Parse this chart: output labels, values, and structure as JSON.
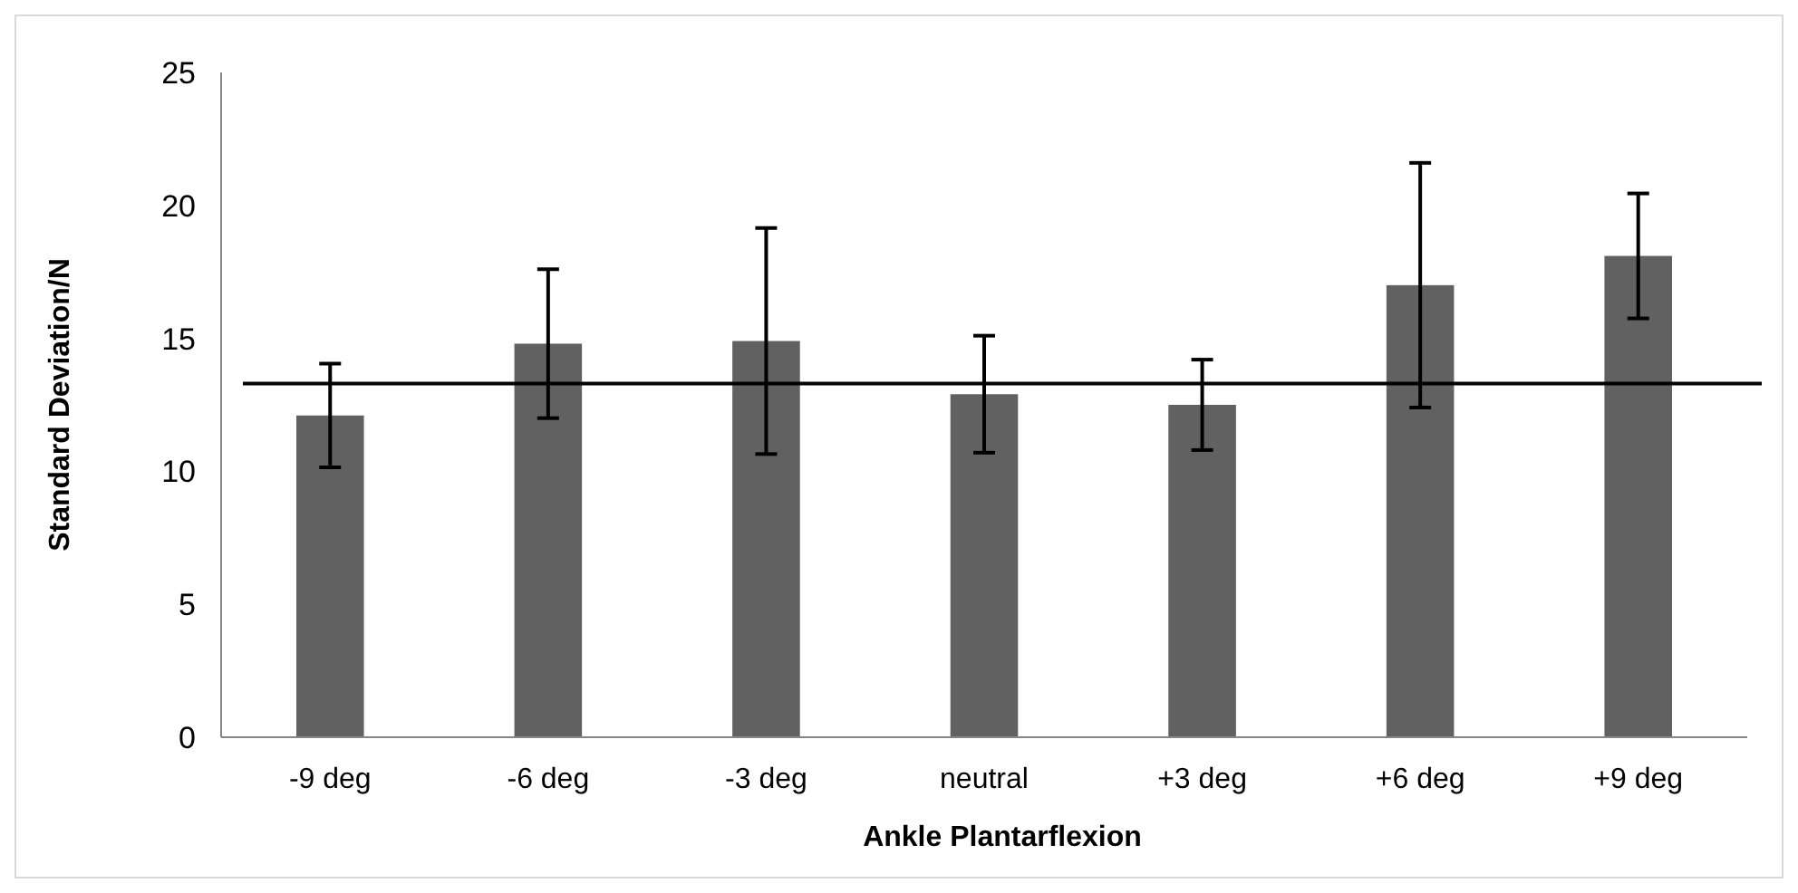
{
  "chart_data": {
    "type": "bar",
    "xlabel": "Ankle Plantarflexion",
    "ylabel": "Standard Deviation/N",
    "categories": [
      "-9 deg",
      "-6 deg",
      "-3 deg",
      "neutral",
      "+3 deg",
      "+6 deg",
      "+9 deg"
    ],
    "values": [
      12.1,
      14.8,
      14.9,
      12.9,
      12.5,
      17.0,
      18.1
    ],
    "errors": [
      1.95,
      2.8,
      4.25,
      2.2,
      1.7,
      4.6,
      2.35
    ],
    "color": "#616161",
    "ylim": [
      0,
      25
    ],
    "yticks": [
      0,
      5,
      10,
      15,
      20,
      25
    ],
    "ref_lines": [
      {
        "axis": "y",
        "value": 13.3,
        "color": "#000000"
      }
    ],
    "grid": false
  }
}
